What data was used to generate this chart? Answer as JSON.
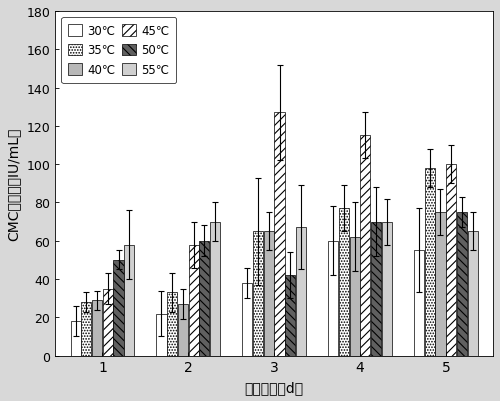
{
  "days": [
    1,
    2,
    3,
    4,
    5
  ],
  "temperatures": [
    "30℃",
    "35℃",
    "40℃",
    "45℃",
    "50℃",
    "55℃"
  ],
  "values": {
    "30": [
      18,
      22,
      38,
      60,
      55
    ],
    "35": [
      28,
      33,
      65,
      77,
      98
    ],
    "40": [
      29,
      27,
      65,
      62,
      75
    ],
    "45": [
      35,
      58,
      127,
      115,
      100
    ],
    "50": [
      50,
      60,
      42,
      70,
      75
    ],
    "55": [
      58,
      70,
      67,
      70,
      65
    ]
  },
  "errors": {
    "30": [
      8,
      12,
      8,
      18,
      22
    ],
    "35": [
      5,
      10,
      28,
      12,
      10
    ],
    "40": [
      5,
      8,
      10,
      18,
      12
    ],
    "45": [
      8,
      12,
      25,
      12,
      10
    ],
    "50": [
      5,
      8,
      12,
      18,
      8
    ],
    "55": [
      18,
      10,
      22,
      12,
      10
    ]
  },
  "xlabel": "培养天数（d）",
  "ylabel": "CMC酶活力（IU/mL）",
  "ylim": [
    0,
    180
  ],
  "yticks": [
    0,
    20,
    40,
    60,
    80,
    100,
    120,
    140,
    160,
    180
  ],
  "background_color": "#d8d8d8",
  "plot_background": "#ffffff",
  "bar_styles": [
    {
      "facecolor": "white",
      "edgecolor": "black",
      "hatch": ""
    },
    {
      "facecolor": "white",
      "edgecolor": "black",
      "hatch": "......"
    },
    {
      "facecolor": "#b8b8b8",
      "edgecolor": "black",
      "hatch": ""
    },
    {
      "facecolor": "white",
      "edgecolor": "black",
      "hatch": "////"
    },
    {
      "facecolor": "#606060",
      "edgecolor": "black",
      "hatch": "\\\\\\\\"
    },
    {
      "facecolor": "#d0d0d0",
      "edgecolor": "black",
      "hatch": "==="
    }
  ]
}
